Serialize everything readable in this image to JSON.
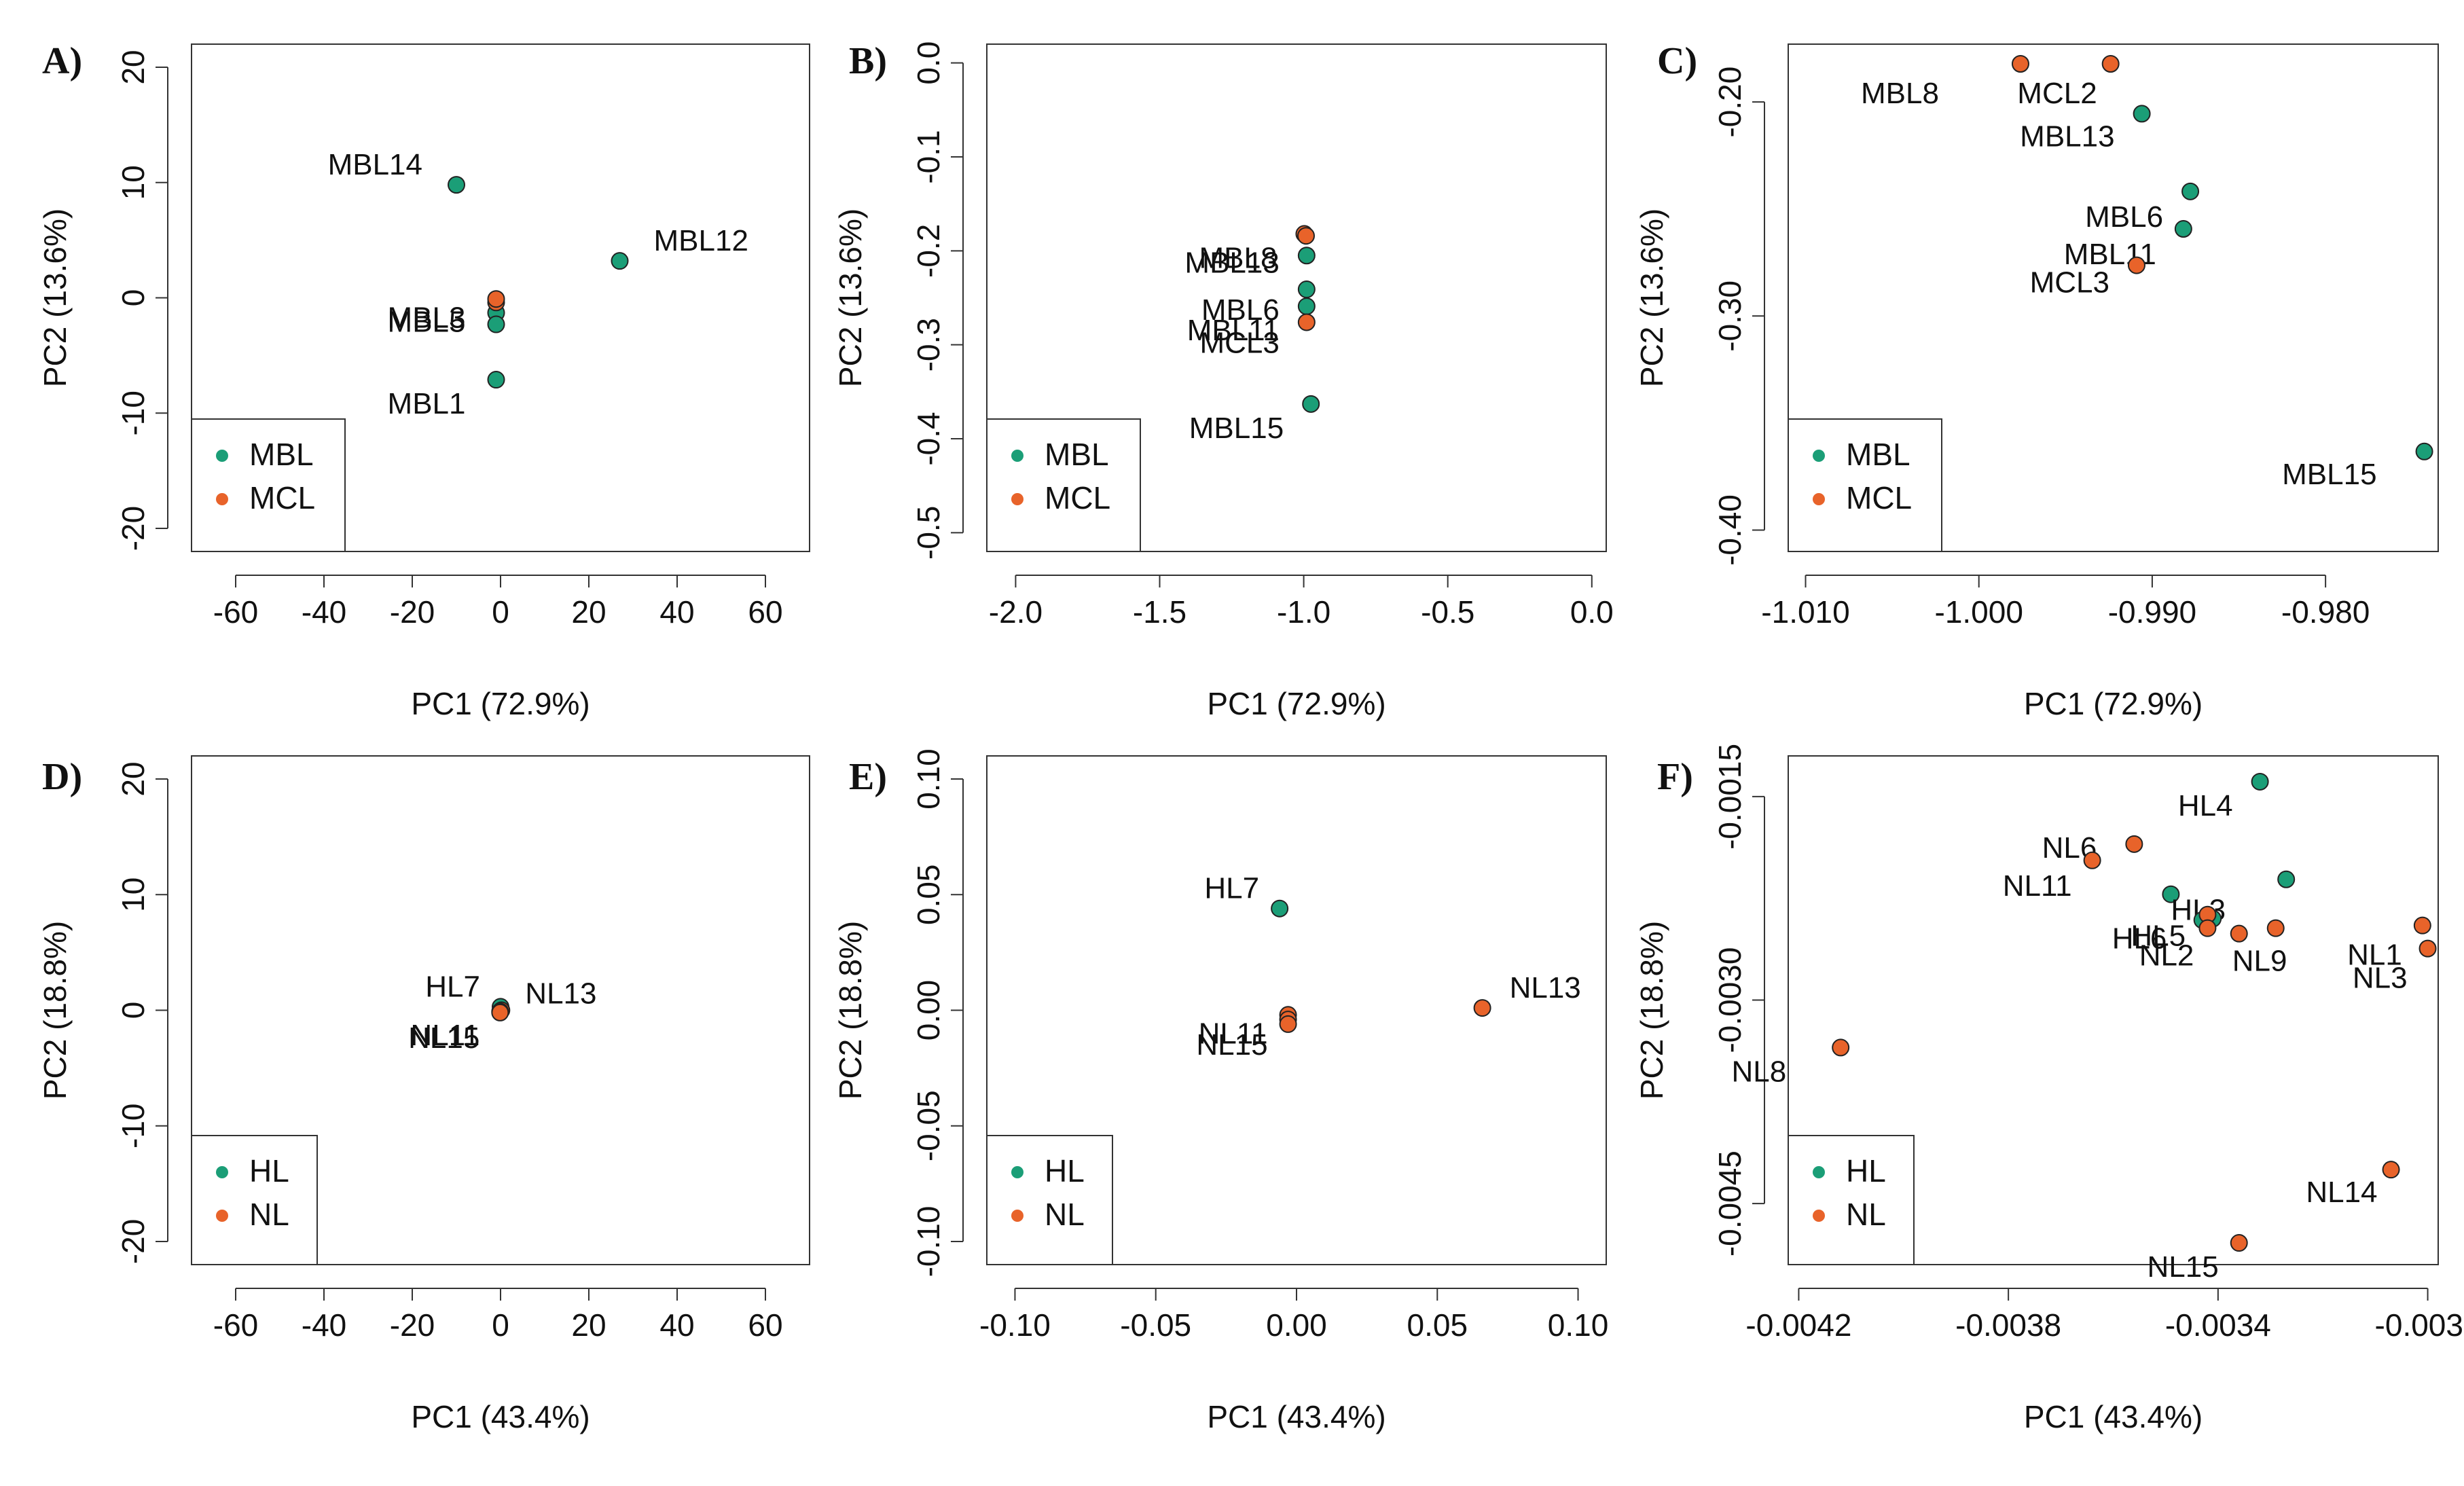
{
  "figure": {
    "colors": {
      "MBL": "#1b9e77",
      "MCL": "#e8632a",
      "HL": "#1b9e77",
      "NL": "#e8632a",
      "frame": "#333333"
    }
  },
  "chart_data": [
    {
      "type": "scatter",
      "panel": "A)",
      "xlabel": "PC1 (72.9%)",
      "ylabel": "PC2 (13.6%)",
      "xlim": [
        -70,
        70
      ],
      "ylim": [
        -22,
        22
      ],
      "xticks": [
        -60,
        -40,
        -20,
        0,
        20,
        40,
        60
      ],
      "xtick_labels": [
        "-60",
        "-40",
        "-20",
        "0",
        "20",
        "40",
        "60"
      ],
      "yticks": [
        -20,
        -10,
        0,
        10,
        20
      ],
      "ytick_labels": [
        "-20",
        "-10",
        "0",
        "10",
        "20"
      ],
      "legend": [
        "MBL",
        "MCL"
      ],
      "points": [
        {
          "group": "MBL",
          "x": -10,
          "y": 9.8,
          "label": "MBL14"
        },
        {
          "group": "MBL",
          "x": 27,
          "y": 3.2,
          "label": "MBL12"
        },
        {
          "group": "MBL",
          "x": -1,
          "y": -7.1,
          "label": "MBL1"
        },
        {
          "group": "MBL",
          "x": -1,
          "y": -1.3,
          "label": "MBL5"
        },
        {
          "group": "MBL",
          "x": -1,
          "y": -2.3,
          "label": "MBL3"
        },
        {
          "group": "MCL",
          "x": -1,
          "y": -0.4,
          "label": ""
        },
        {
          "group": "MCL",
          "x": -1,
          "y": -0.1,
          "label": ""
        }
      ]
    },
    {
      "type": "scatter",
      "panel": "B)",
      "xlabel": "PC1 (72.9%)",
      "ylabel": "PC2 (13.6%)",
      "xlim": [
        -2.1,
        0.05
      ],
      "ylim": [
        -0.52,
        0.02
      ],
      "xticks": [
        -2.0,
        -1.5,
        -1.0,
        -0.5,
        0.0
      ],
      "xtick_labels": [
        "-2.0",
        "-1.5",
        "-1.0",
        "-0.5",
        "0.0"
      ],
      "yticks": [
        -0.5,
        -0.4,
        -0.3,
        -0.2,
        -0.1,
        0.0
      ],
      "ytick_labels": [
        "-0.5",
        "-0.4",
        "-0.3",
        "-0.2",
        "-0.1",
        "0.0"
      ],
      "legend": [
        "MBL",
        "MCL"
      ],
      "points": [
        {
          "group": "MCL",
          "x": -0.998,
          "y": -0.182,
          "label": "MBL8"
        },
        {
          "group": "MCL",
          "x": -0.992,
          "y": -0.184,
          "label": ""
        },
        {
          "group": "MBL",
          "x": -0.99,
          "y": -0.205,
          "label": "MBL13"
        },
        {
          "group": "MBL",
          "x": -0.99,
          "y": -0.241,
          "label": "MBL6"
        },
        {
          "group": "MBL",
          "x": -0.99,
          "y": -0.259,
          "label": "MBL11"
        },
        {
          "group": "MCL",
          "x": -0.99,
          "y": -0.276,
          "label": "MCL3"
        },
        {
          "group": "MBL",
          "x": -0.975,
          "y": -0.363,
          "label": "MBL15"
        }
      ]
    },
    {
      "type": "scatter",
      "panel": "C)",
      "xlabel": "PC1 (72.9%)",
      "ylabel": "PC2 (13.6%)",
      "xlim": [
        -1.011,
        -0.9735
      ],
      "ylim": [
        -0.41,
        -0.173
      ],
      "xticks": [
        -1.01,
        -1.0,
        -0.99,
        -0.98
      ],
      "xtick_labels": [
        "-1.010",
        "-1.000",
        "-0.990",
        "-0.980"
      ],
      "yticks": [
        -0.4,
        -0.3,
        -0.2
      ],
      "ytick_labels": [
        "-0.40",
        "-0.30",
        "-0.20"
      ],
      "legend": [
        "MBL",
        "MCL"
      ],
      "points": [
        {
          "group": "MCL",
          "x": -0.9976,
          "y": -0.1822,
          "label": "MBL8"
        },
        {
          "group": "MCL",
          "x": -0.9924,
          "y": -0.1822,
          "label": "MCL2"
        },
        {
          "group": "MBL",
          "x": -0.9906,
          "y": -0.2055,
          "label": "MBL13"
        },
        {
          "group": "MBL",
          "x": -0.9878,
          "y": -0.2418,
          "label": "MBL6"
        },
        {
          "group": "MBL",
          "x": -0.9882,
          "y": -0.2593,
          "label": "MBL11"
        },
        {
          "group": "MCL",
          "x": -0.9909,
          "y": -0.2763,
          "label": "MCL3"
        },
        {
          "group": "MBL",
          "x": -0.9743,
          "y": -0.3633,
          "label": "MBL15"
        }
      ]
    },
    {
      "type": "scatter",
      "panel": "D)",
      "xlabel": "PC1 (43.4%)",
      "ylabel": "PC2 (18.8%)",
      "xlim": [
        -70,
        70
      ],
      "ylim": [
        -22,
        22
      ],
      "xticks": [
        -60,
        -40,
        -20,
        0,
        20,
        40,
        60
      ],
      "xtick_labels": [
        "-60",
        "-40",
        "-20",
        "0",
        "20",
        "40",
        "60"
      ],
      "yticks": [
        -20,
        -10,
        0,
        10,
        20
      ],
      "ytick_labels": [
        "-20",
        "-10",
        "0",
        "10",
        "20"
      ],
      "legend": [
        "HL",
        "NL"
      ],
      "points": [
        {
          "group": "HL",
          "x": 0,
          "y": 0.3,
          "label": "HL7"
        },
        {
          "group": "NL",
          "x": 0.2,
          "y": 0,
          "label": "NL13"
        },
        {
          "group": "NL",
          "x": -0.1,
          "y": -0.1,
          "label": "NL11"
        },
        {
          "group": "NL",
          "x": -0.1,
          "y": -0.2,
          "label": "NL15"
        }
      ]
    },
    {
      "type": "scatter",
      "panel": "E)",
      "xlabel": "PC1 (43.4%)",
      "ylabel": "PC2 (18.8%)",
      "xlim": [
        -0.11,
        0.11
      ],
      "ylim": [
        -0.11,
        0.11
      ],
      "xticks": [
        -0.1,
        -0.05,
        0.0,
        0.05,
        0.1
      ],
      "xtick_labels": [
        "-0.10",
        "-0.05",
        "0.00",
        "0.05",
        "0.10"
      ],
      "yticks": [
        -0.1,
        -0.05,
        0.0,
        0.05,
        0.1
      ],
      "ytick_labels": [
        "-0.10",
        "-0.05",
        "0.00",
        "0.05",
        "0.10"
      ],
      "legend": [
        "HL",
        "NL"
      ],
      "points": [
        {
          "group": "HL",
          "x": -0.006,
          "y": 0.044,
          "label": "HL7"
        },
        {
          "group": "NL",
          "x": 0.066,
          "y": 0.001,
          "label": "NL13"
        },
        {
          "group": "NL",
          "x": -0.003,
          "y": -0.002,
          "label": "NL11"
        },
        {
          "group": "NL",
          "x": -0.003,
          "y": -0.004,
          "label": "NL15"
        },
        {
          "group": "NL",
          "x": -0.003,
          "y": -0.006,
          "label": ""
        }
      ]
    },
    {
      "type": "scatter",
      "panel": "F)",
      "xlabel": "PC1 (43.4%)",
      "ylabel": "PC2 (18.8%)",
      "xlim": [
        -0.00422,
        -0.00298
      ],
      "ylim": [
        -0.00495,
        -0.0012
      ],
      "xticks": [
        -0.0042,
        -0.0038,
        -0.0034,
        -0.003
      ],
      "xtick_labels": [
        "-0.0042",
        "-0.0038",
        "-0.0034",
        "-0.0030"
      ],
      "yticks": [
        -0.0045,
        -0.003,
        -0.0015
      ],
      "ytick_labels": [
        "-0.0045",
        "-0.0030",
        "-0.0015"
      ],
      "legend": [
        "HL",
        "NL"
      ],
      "points": [
        {
          "group": "HL",
          "x": -0.00332,
          "y": -0.00139,
          "label": "HL4"
        },
        {
          "group": "NL",
          "x": -0.00356,
          "y": -0.00185,
          "label": "NL6"
        },
        {
          "group": "NL",
          "x": -0.00364,
          "y": -0.00197,
          "label": "NL11"
        },
        {
          "group": "HL",
          "x": -0.00327,
          "y": -0.00211,
          "label": ""
        },
        {
          "group": "HL",
          "x": -0.00349,
          "y": -0.00222,
          "label": "HL3"
        },
        {
          "group": "HL",
          "x": -0.00341,
          "y": -0.0024,
          "label": "HL5"
        },
        {
          "group": "HL",
          "x": -0.00343,
          "y": -0.00241,
          "label": ""
        },
        {
          "group": "NL",
          "x": -0.00342,
          "y": -0.00237,
          "label": "HL6"
        },
        {
          "group": "NL",
          "x": -0.00342,
          "y": -0.00247,
          "label": "NL2"
        },
        {
          "group": "NL",
          "x": -0.00336,
          "y": -0.00251,
          "label": "NL9"
        },
        {
          "group": "NL",
          "x": -0.00329,
          "y": -0.00247,
          "label": ""
        },
        {
          "group": "NL",
          "x": -0.00301,
          "y": -0.00245,
          "label": "NL1"
        },
        {
          "group": "NL",
          "x": -0.003,
          "y": -0.00262,
          "label": "NL3"
        },
        {
          "group": "NL",
          "x": -0.00412,
          "y": -0.00335,
          "label": "NL8"
        },
        {
          "group": "NL",
          "x": -0.00307,
          "y": -0.00425,
          "label": "NL14"
        },
        {
          "group": "NL",
          "x": -0.00336,
          "y": -0.00479,
          "label": "NL15"
        }
      ]
    }
  ]
}
